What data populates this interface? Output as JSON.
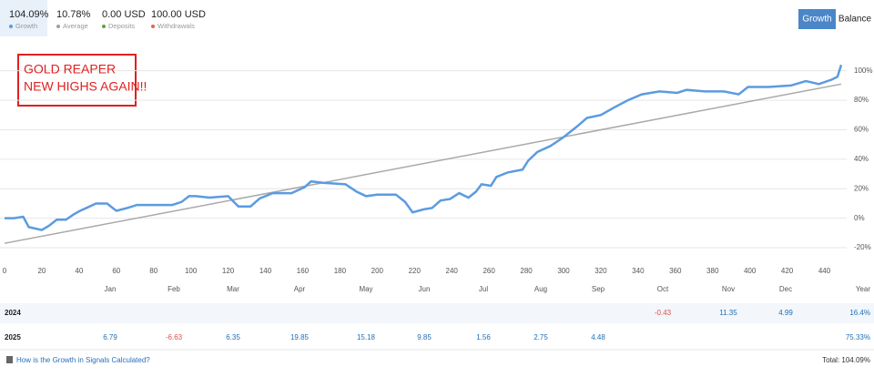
{
  "summary": [
    {
      "value": "104.09%",
      "label": "Growth",
      "color": "#5b9be0"
    },
    {
      "value": "10.78%",
      "label": "Average",
      "color": "#a0a0a0"
    },
    {
      "value": "0.00 USD",
      "label": "Deposits",
      "color": "#5aa83c"
    },
    {
      "value": "100.00 USD",
      "label": "Withdrawals",
      "color": "#e0664e"
    }
  ],
  "buttons": [
    "Growth",
    "Balance"
  ],
  "chart_data": {
    "type": "line",
    "annotation": [
      "GOLD REAPER",
      "NEW HIGHS AGAIN!!"
    ],
    "xlim": [
      0,
      450
    ],
    "ylim": [
      -28,
      114
    ],
    "xticks": [
      0,
      20,
      40,
      60,
      80,
      100,
      120,
      140,
      160,
      180,
      200,
      220,
      240,
      260,
      280,
      300,
      320,
      340,
      360,
      380,
      400,
      420,
      440
    ],
    "yticks": [
      {
        "value": -20,
        "label": "-20%"
      },
      {
        "value": 0,
        "label": "0%"
      },
      {
        "value": 20,
        "label": "20%"
      },
      {
        "value": 40,
        "label": "40%"
      },
      {
        "value": 60,
        "label": "60%"
      },
      {
        "value": 80,
        "label": "80%"
      },
      {
        "value": 100,
        "label": "100%"
      }
    ],
    "grid": true,
    "series": [
      {
        "color": "#a9a9a9",
        "x": [
          0,
          449
        ],
        "values": [
          -17,
          91
        ]
      },
      {
        "color": "#5b9be0",
        "x": [
          0,
          5,
          10,
          13,
          20,
          24,
          28,
          33,
          37,
          40.5,
          44,
          49,
          55,
          60,
          66,
          71,
          80.6,
          90,
          95,
          99,
          102.5,
          110,
          120,
          125.5,
          132,
          137,
          144,
          154,
          161,
          164.5,
          171,
          183,
          189,
          194,
          200,
          210,
          215,
          219,
          225,
          229.5,
          234,
          239,
          244,
          249,
          253,
          256,
          261,
          264,
          270,
          278,
          281,
          286,
          293,
          300,
          308,
          312.5,
          320,
          327,
          334.5,
          342,
          351.5,
          361,
          366,
          376,
          386,
          394,
          399,
          410,
          422,
          430,
          437,
          444,
          447,
          449
        ],
        "values": [
          0,
          0,
          1,
          -6,
          -8,
          -5,
          -1,
          -1,
          2.5,
          5,
          7,
          10,
          10,
          5,
          7,
          9,
          9,
          9,
          11,
          15,
          15,
          14,
          15,
          8,
          8,
          13.5,
          17,
          17,
          21,
          25,
          24,
          23,
          18,
          15,
          16,
          16,
          11,
          4,
          6,
          7,
          12,
          13,
          17,
          14,
          18,
          23,
          22,
          28,
          31,
          33,
          39,
          45,
          49,
          55,
          63,
          68,
          70,
          75,
          80,
          84,
          86,
          85,
          87,
          86,
          86,
          84,
          89,
          89,
          90,
          93,
          91,
          94,
          96,
          104
        ]
      }
    ]
  },
  "table": {
    "header": [
      "Jan",
      "Feb",
      "Mar",
      "Apr",
      "May",
      "Jun",
      "Jul",
      "Aug",
      "Sep",
      "Oct",
      "Nov",
      "Dec",
      "Year"
    ],
    "rows": [
      {
        "year": "2024",
        "cells": [
          null,
          null,
          null,
          null,
          null,
          null,
          null,
          null,
          null,
          "-0.43",
          "11.35",
          "4.99",
          "16.4%"
        ]
      },
      {
        "year": "2025",
        "cells": [
          "6.79",
          "-6.63",
          "6.35",
          "19.85",
          "15.18",
          "9.85",
          "1.56",
          "2.75",
          "4.48",
          null,
          null,
          null,
          "75.33%"
        ]
      }
    ]
  },
  "footer": {
    "link": "How is the Growth in Signals Calculated?",
    "total": "Total: 104.09%"
  }
}
